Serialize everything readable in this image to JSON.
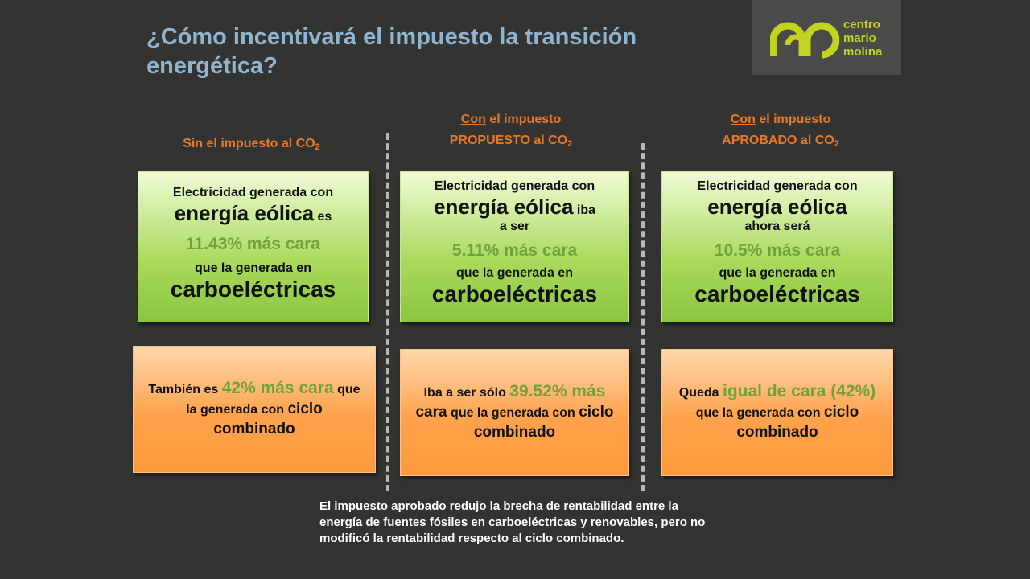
{
  "title": "¿Cómo incentivará el impuesto la transición energética?",
  "logo": {
    "line1": "centro",
    "line2": "mario",
    "line3": "molina",
    "icon": "centro-mario-molina-logo",
    "color": "#c3d31f"
  },
  "columns": [
    {
      "head_underlined": "",
      "head_line1": "Sin el impuesto al CO",
      "head_line1_sub": "2",
      "head_line2": "",
      "head_line2_sub": "",
      "green": {
        "line1": "Electricidad generada con",
        "big": "energía eólica",
        "after_big": "es",
        "small": "",
        "pct": "11.43% más cara",
        "line4": "que la generada en",
        "last": "carboeléctricas"
      },
      "orange": {
        "pre": "También es ",
        "green": "42% más cara",
        "mid": " que la generada con ",
        "big": "ciclo combinado",
        "post": ""
      }
    },
    {
      "head_underlined": "Con",
      "head_line1": " el impuesto",
      "head_line1_sub": "",
      "head_line2": "PROPUESTO al CO",
      "head_line2_sub": "2",
      "green": {
        "line1": "Electricidad generada con",
        "big": "energía eólica",
        "after_big": "iba",
        "small": "a ser",
        "pct": "5.11% más cara",
        "line4": "que la generada en",
        "last": "carboeléctricas"
      },
      "orange": {
        "pre": "Iba a ser sólo ",
        "green": "39.52% más",
        "mid_big": " cara",
        "mid": " que la generada con ",
        "big": "ciclo combinado",
        "post": ""
      }
    },
    {
      "head_underlined": "Con",
      "head_line1": " el impuesto",
      "head_line1_sub": "",
      "head_line2": "APROBADO al CO",
      "head_line2_sub": "2",
      "green": {
        "line1": "Electricidad generada con",
        "big": "energía eólica",
        "after_big": "",
        "small": "ahora será",
        "pct": "10.5% más cara",
        "line4": "que la generada en",
        "last": "carboeléctricas"
      },
      "orange": {
        "pre": "Queda ",
        "green": "igual de cara (42%)",
        "mid": " que la generada con ",
        "big": "ciclo combinado",
        "post": ""
      }
    }
  ],
  "note": "El impuesto aprobado redujo la brecha de rentabilidad entre la energía de fuentes fósiles en carboeléctricas y renovables, pero no modificó la rentabilidad respecto al ciclo combinado.",
  "colors": {
    "background": "#333432",
    "title": "#8fb4cf",
    "heading": "#e8792a",
    "green_text": "#6ea33a"
  }
}
